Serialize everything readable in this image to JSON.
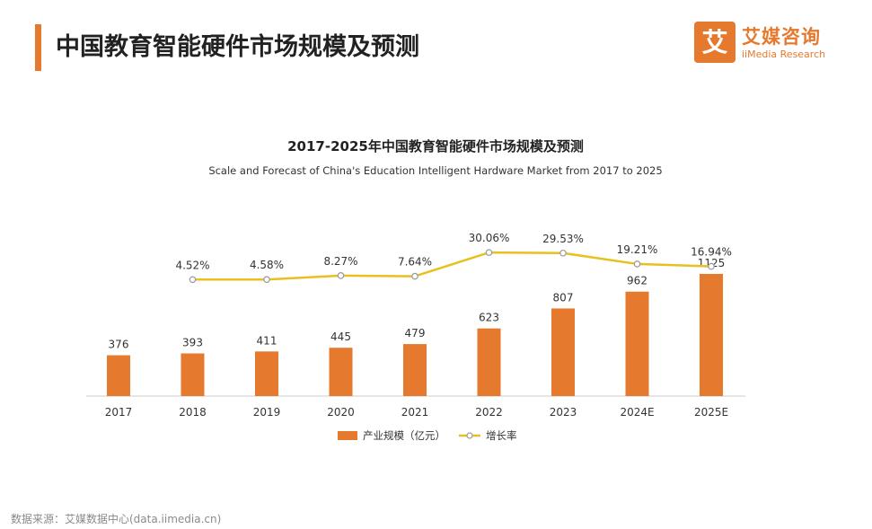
{
  "header": {
    "title": "中国教育智能硬件市场规模及预测",
    "logo_char": "艾",
    "logo_cn": "艾媒咨询",
    "logo_en": "iiMedia Research"
  },
  "chart_data": {
    "type": "bar",
    "title": "2017-2025年中国教育智能硬件市场规模及预测",
    "subtitle": "Scale and Forecast of China's Education Intelligent Hardware Market from 2017 to 2025",
    "categories": [
      "2017",
      "2018",
      "2019",
      "2020",
      "2021",
      "2022",
      "2023",
      "2024E",
      "2025E"
    ],
    "series": [
      {
        "name": "产业规模（亿元）",
        "type": "bar",
        "values": [
          376,
          393,
          411,
          445,
          479,
          623,
          807,
          962,
          1125
        ],
        "labels": [
          "376",
          "393",
          "411",
          "445",
          "479",
          "623",
          "807",
          "962",
          "1125"
        ],
        "color": "#e57a2e"
      },
      {
        "name": "增长率",
        "type": "line",
        "values": [
          null,
          4.52,
          4.58,
          8.27,
          7.64,
          30.06,
          29.53,
          19.21,
          16.94
        ],
        "labels": [
          "",
          "4.52%",
          "4.58%",
          "8.27%",
          "7.64%",
          "30.06%",
          "29.53%",
          "19.21%",
          "16.94%"
        ],
        "color": "#e8c020"
      }
    ],
    "legend_position": "bottom",
    "grid": false
  },
  "footer": {
    "source": "数据来源：艾媒数据中心(data.iimedia.cn)"
  }
}
